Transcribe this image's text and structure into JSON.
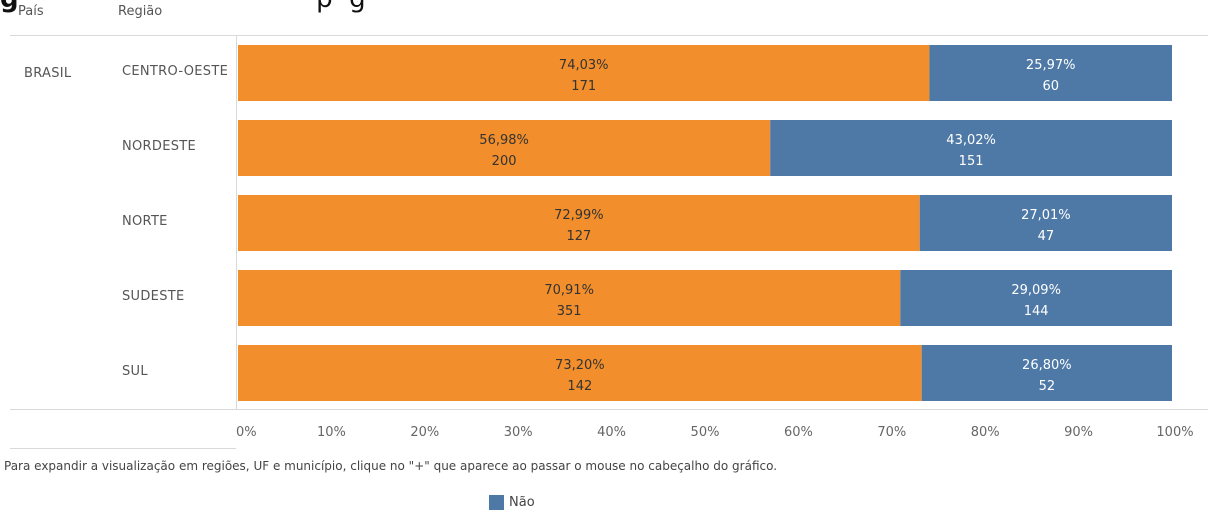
{
  "clipped_title": {
    "prefix": "g",
    "rest": "                                    p  g"
  },
  "headers": {
    "pais": "País",
    "regiao": "Região"
  },
  "pais_value": "BRASIL",
  "colors": {
    "sim": "#f28e2b",
    "nao": "#4e79a7"
  },
  "chart_data": {
    "type": "bar",
    "orientation": "horizontal",
    "stacked": "100%",
    "categories": [
      "CENTRO-OESTE",
      "NORDESTE",
      "NORTE",
      "SUDESTE",
      "SUL"
    ],
    "series": [
      {
        "name": "",
        "color": "#f28e2b",
        "percent_labels": [
          "74,03%",
          "56,98%",
          "72,99%",
          "70,91%",
          "73,20%"
        ],
        "percent_values": [
          74.03,
          56.98,
          72.99,
          70.91,
          73.2
        ],
        "counts": [
          171,
          200,
          127,
          351,
          142
        ]
      },
      {
        "name": "Não",
        "color": "#4e79a7",
        "percent_labels": [
          "25,97%",
          "43,02%",
          "27,01%",
          "29,09%",
          "26,80%"
        ],
        "percent_values": [
          25.97,
          43.02,
          27.01,
          29.09,
          26.8
        ],
        "counts": [
          60,
          151,
          47,
          144,
          52
        ]
      }
    ],
    "xticks": [
      "0%",
      "10%",
      "20%",
      "30%",
      "40%",
      "50%",
      "60%",
      "70%",
      "80%",
      "90%",
      "100%"
    ],
    "xlim": [
      0,
      100
    ]
  },
  "footnote": "Para expandir a visualização em regiões, UF e município, clique no \"+\" que aparece ao passar o mouse no cabeçalho do gráfico.",
  "legend": {
    "label": "Não"
  }
}
